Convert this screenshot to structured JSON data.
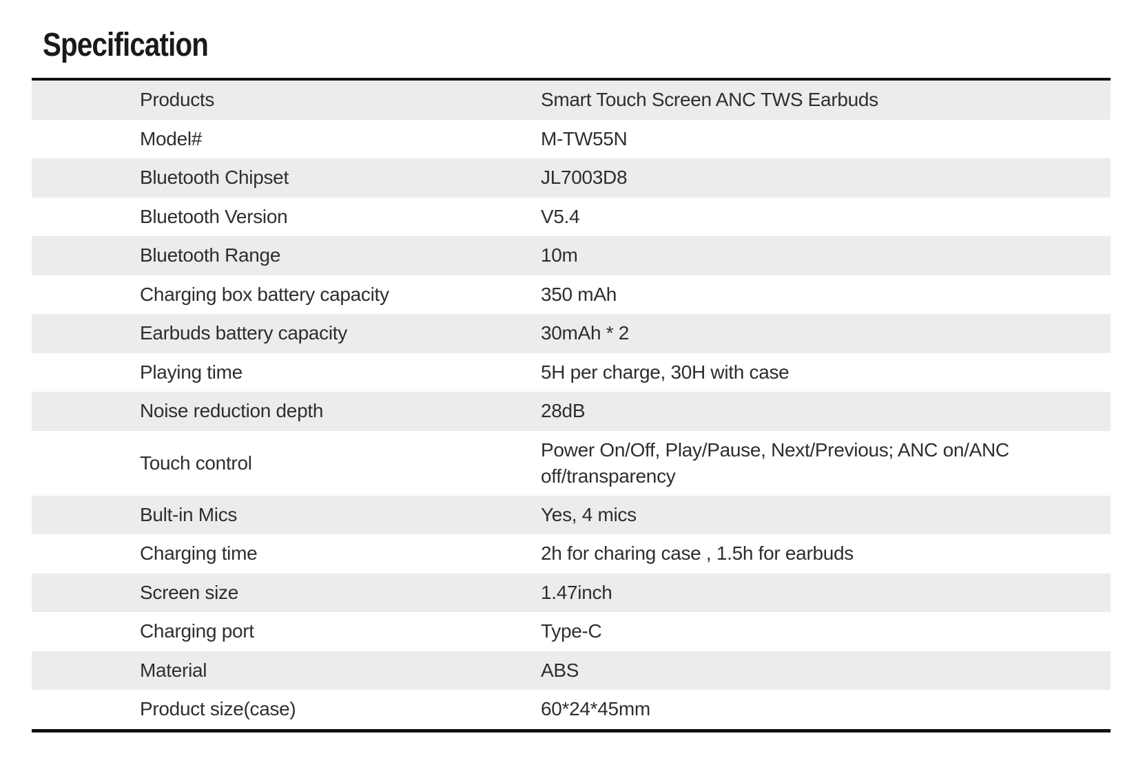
{
  "title": "Specification",
  "table": {
    "rows": [
      {
        "label": "Products",
        "value": "Smart Touch Screen ANC TWS Earbuds"
      },
      {
        "label": "Model#",
        "value": "M-TW55N"
      },
      {
        "label": "Bluetooth Chipset",
        "value": "JL7003D8"
      },
      {
        "label": "Bluetooth Version",
        "value": "V5.4"
      },
      {
        "label": "Bluetooth Range",
        "value": "10m"
      },
      {
        "label": "Charging box battery capacity",
        "value": "350 mAh"
      },
      {
        "label": "Earbuds battery capacity",
        "value": "30mAh * 2"
      },
      {
        "label": "Playing time",
        "value": "5H per charge, 30H with case"
      },
      {
        "label": "Noise reduction depth",
        "value": "28dB"
      },
      {
        "label": "Touch control",
        "value": "Power On/Off, Play/Pause, Next/Previous; ANC on/ANC off/transparency"
      },
      {
        "label": "Bult-in Mics",
        "value": "Yes, 4 mics"
      },
      {
        "label": "Charging time",
        "value": "2h for charing case , 1.5h for earbuds"
      },
      {
        "label": "Screen size",
        "value": "1.47inch"
      },
      {
        "label": "Charging port",
        "value": "Type-C"
      },
      {
        "label": "Material",
        "value": "ABS"
      },
      {
        "label": "Product size(case)",
        "value": "60*24*45mm"
      }
    ]
  },
  "colors": {
    "background": "#ffffff",
    "stripe": "#ececec",
    "border": "#121212",
    "text": "#2e2e2e",
    "title_text": "#1a1a1a"
  }
}
